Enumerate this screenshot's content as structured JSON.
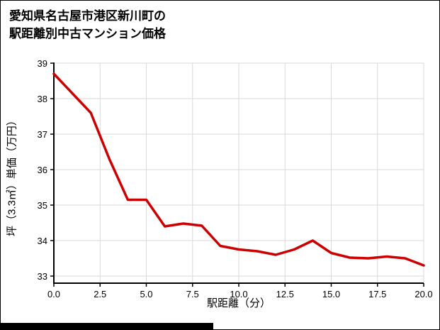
{
  "title": {
    "line1": "愛知県名古屋市港区新川町の",
    "line2": "駅距離別中古マンション価格"
  },
  "chart_data": {
    "type": "line",
    "title": "愛知県名古屋市港区新川町の駅距離別中古マンション価格",
    "xlabel": "駅距離（分）",
    "ylabel": "坪（3.3㎡）単価（万円）",
    "x": [
      0,
      1,
      2,
      3,
      4,
      5,
      6,
      7,
      8,
      9,
      10,
      11,
      12,
      13,
      14,
      15,
      16,
      17,
      18,
      19,
      20
    ],
    "y": [
      38.7,
      38.15,
      37.6,
      36.3,
      35.15,
      35.15,
      34.4,
      34.48,
      34.42,
      33.85,
      33.75,
      33.7,
      33.6,
      33.75,
      34.0,
      33.65,
      33.52,
      33.5,
      33.55,
      33.5,
      33.3
    ],
    "xlim": [
      0,
      20
    ],
    "ylim": [
      32.8,
      39
    ],
    "xticks": [
      0,
      2.5,
      5,
      7.5,
      10,
      12.5,
      15,
      17.5,
      20
    ],
    "xtick_labels": [
      "0.0",
      "2.5",
      "5.0",
      "7.5",
      "10.0",
      "12.5",
      "15.0",
      "17.5",
      "20.0"
    ],
    "yticks": [
      33,
      34,
      35,
      36,
      37,
      38,
      39
    ],
    "ytick_labels": [
      "33",
      "34",
      "35",
      "36",
      "37",
      "38",
      "39"
    ],
    "line_color": "#cc0000",
    "axis_color": "#000000",
    "grid_color": "#d9d9d9",
    "grid": true,
    "legend": false
  }
}
